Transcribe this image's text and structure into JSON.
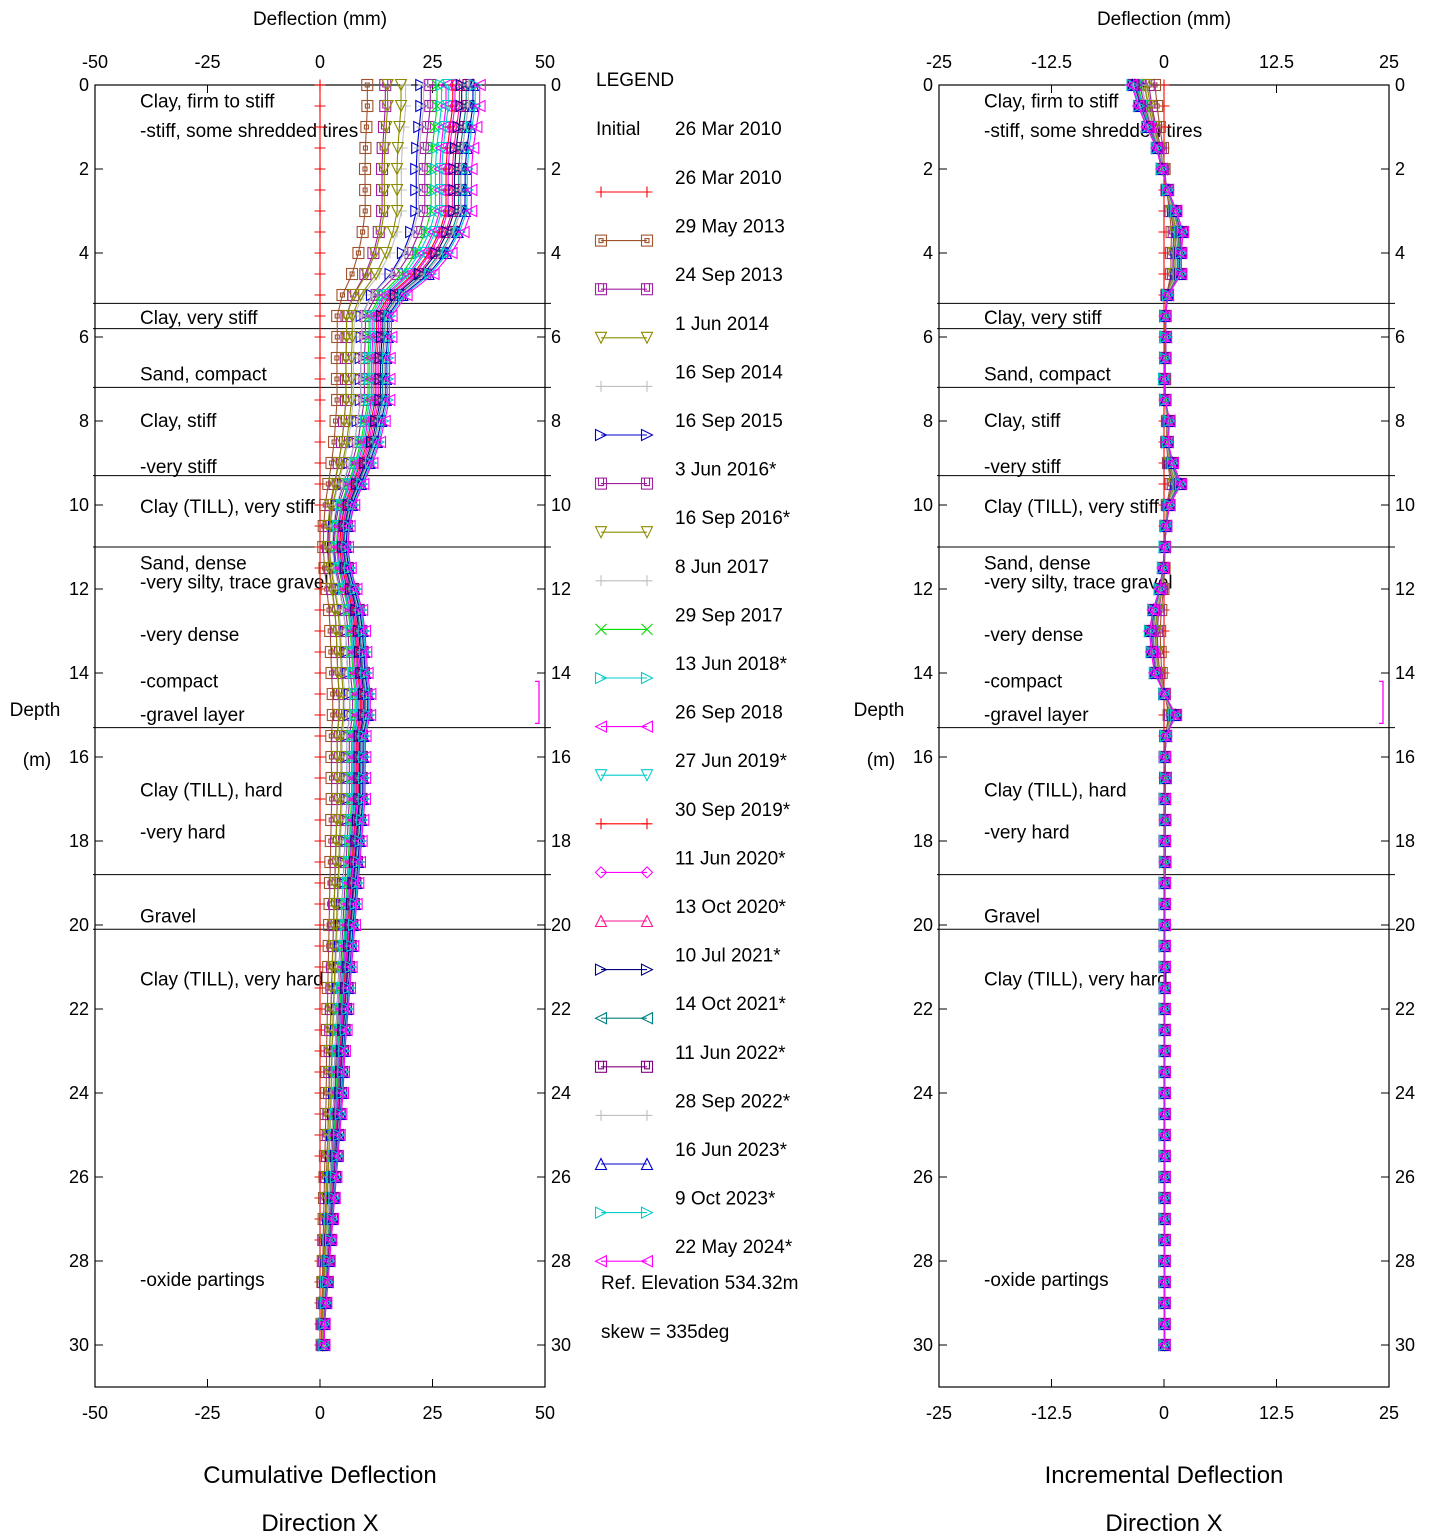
{
  "charts": [
    {
      "title": "Cumulative Deflection",
      "subtitle": "Direction  X",
      "top_axis_label": "Deflection (mm)",
      "ylabel_line1": "Depth",
      "ylabel_line2": "(m)",
      "xlim": [
        -50,
        50
      ],
      "x_ticks": [
        -50,
        -25,
        0,
        25,
        50
      ],
      "x_tick_labels": [
        "-50",
        "-25",
        "0",
        "25",
        "50"
      ]
    },
    {
      "title": "Incremental Deflection",
      "subtitle": "Direction  X",
      "top_axis_label": "Deflection (mm)",
      "ylabel_line1": "Depth",
      "ylabel_line2": "(m)",
      "xlim": [
        -25,
        25
      ],
      "x_ticks": [
        -25,
        -12.5,
        0,
        12.5,
        25
      ],
      "x_tick_labels": [
        "-25",
        "-12.5",
        "0",
        "12.5",
        "25"
      ]
    }
  ],
  "depth_ticks": [
    "0",
    "2",
    "4",
    "6",
    "8",
    "10",
    "12",
    "14",
    "16",
    "18",
    "20",
    "22",
    "24",
    "26",
    "28",
    "30"
  ],
  "ylim": [
    0,
    31
  ],
  "strata_boundaries": [
    5.2,
    5.8,
    7.2,
    9.3,
    11.0,
    15.3,
    18.8,
    20.1
  ],
  "strata_labels": [
    {
      "text": "Clay, firm to stiff",
      "depth": 0.35
    },
    {
      "text": "-stiff, some shredded tires",
      "depth": 1.05
    },
    {
      "text": "Clay, very stiff",
      "depth": 5.5
    },
    {
      "text": "Sand, compact",
      "depth": 6.85
    },
    {
      "text": "Clay, stiff",
      "depth": 7.95
    },
    {
      "text": "-very stiff",
      "depth": 9.05
    },
    {
      "text": "Clay (TILL), very stiff",
      "depth": 10.0
    },
    {
      "text": "Sand, dense",
      "depth": 11.35
    },
    {
      "text": "-very silty, trace gravel",
      "depth": 11.8
    },
    {
      "text": "-very dense",
      "depth": 13.05
    },
    {
      "text": "-compact",
      "depth": 14.15
    },
    {
      "text": "-gravel layer",
      "depth": 14.95
    },
    {
      "text": "Clay (TILL), hard",
      "depth": 16.75
    },
    {
      "text": "-very hard",
      "depth": 17.75
    },
    {
      "text": "Gravel",
      "depth": 19.75
    },
    {
      "text": "Clay (TILL), very hard",
      "depth": 21.25
    },
    {
      "text": "-oxide partings",
      "depth": 28.4
    }
  ],
  "bracket": {
    "depth_from": 14.2,
    "depth_to": 15.2,
    "color": "#ff00ff"
  },
  "legend": {
    "title": "LEGEND",
    "initial_label": "Initial",
    "initial_date": "26 Mar 2010",
    "ref_elevation": "Ref. Elevation 534.32m",
    "skew": "skew = 335deg"
  },
  "chart_data": {
    "type": "line",
    "charts": [
      "Cumulative Deflection",
      "Incremental Deflection"
    ],
    "x_unit": "mm",
    "y_unit": "m",
    "depth": [
      0,
      0.5,
      1,
      1.5,
      2,
      2.5,
      3,
      3.5,
      4,
      4.5,
      5,
      5.5,
      6,
      6.5,
      7,
      7.5,
      8,
      8.5,
      9,
      9.5,
      10,
      10.5,
      11,
      11.5,
      12,
      12.5,
      13,
      13.5,
      14,
      14.5,
      15,
      15.5,
      16,
      16.5,
      17,
      17.5,
      18,
      18.5,
      19,
      19.5,
      20,
      20.5,
      21,
      21.5,
      22,
      22.5,
      23,
      23.5,
      24,
      24.5,
      25,
      25.5,
      26,
      26.5,
      27,
      27.5,
      28,
      28.5,
      29,
      29.5,
      30
    ],
    "cumulative_profile": [
      1.0,
      1.0,
      0.98,
      0.96,
      0.95,
      0.95,
      0.95,
      0.9,
      0.82,
      0.7,
      0.52,
      0.42,
      0.42,
      0.41,
      0.41,
      0.41,
      0.38,
      0.35,
      0.3,
      0.24,
      0.18,
      0.15,
      0.14,
      0.16,
      0.2,
      0.24,
      0.26,
      0.27,
      0.28,
      0.3,
      0.3,
      0.27,
      0.27,
      0.27,
      0.27,
      0.26,
      0.25,
      0.24,
      0.23,
      0.22,
      0.21,
      0.2,
      0.19,
      0.18,
      0.17,
      0.16,
      0.15,
      0.145,
      0.14,
      0.13,
      0.12,
      0.11,
      0.1,
      0.09,
      0.08,
      0.07,
      0.06,
      0.05,
      0.04,
      0.03,
      0.03
    ],
    "incremental_profile": [
      -1.0,
      -0.8,
      -0.55,
      -0.25,
      -0.1,
      0.1,
      0.35,
      0.55,
      0.5,
      0.5,
      0.1,
      0.02,
      0.04,
      0.02,
      -0.02,
      0.02,
      0.15,
      0.1,
      0.25,
      0.5,
      0.15,
      0.05,
      0.0,
      -0.05,
      -0.15,
      -0.35,
      -0.45,
      -0.4,
      -0.3,
      0.0,
      0.35,
      0.05,
      0.02,
      0.04,
      0.02,
      0.03,
      0.02,
      0.03,
      0.02,
      0.02,
      0.02,
      0.02,
      0.02,
      0.02,
      0.02,
      0.02,
      0.02,
      0.02,
      0.02,
      0.02,
      0.02,
      0.02,
      0.02,
      0.02,
      0.02,
      0.02,
      0.02,
      0.02,
      0.02,
      0.02,
      0.02
    ],
    "series": [
      {
        "name": "26 Mar 2010",
        "color": "#ff0000",
        "marker": "plus",
        "cum_scale": 0,
        "cum_offset": 0.5,
        "inc_scale": 0,
        "inc_offset": 0
      },
      {
        "name": "29 May 2013",
        "color": "#a0522d",
        "marker": "square-dot",
        "cum_scale": 12,
        "cum_offset": -1.5,
        "inc_scale": 1.2,
        "inc_offset": 0.2
      },
      {
        "name": "24 Sep 2013",
        "color": "#a020a0",
        "marker": "square-u",
        "cum_scale": 15,
        "cum_offset": -0.5,
        "inc_scale": 1.8,
        "inc_offset": 0.1
      },
      {
        "name": "1 Jun 2014",
        "color": "#8b8b00",
        "marker": "tri-down",
        "cum_scale": 16,
        "cum_offset": -1.0,
        "inc_scale": 2.0,
        "inc_offset": 0.1
      },
      {
        "name": "16 Sep 2014",
        "color": "#c0c0c0",
        "marker": "plus",
        "cum_scale": 20,
        "cum_offset": -1.0,
        "inc_scale": 2.2,
        "inc_offset": 0.1
      },
      {
        "name": "16 Sep 2015",
        "color": "#0000cd",
        "marker": "tri-right",
        "cum_scale": 23,
        "cum_offset": -0.5,
        "inc_scale": 2.6,
        "inc_offset": 0.1
      },
      {
        "name": "3 Jun 2016*",
        "color": "#a020a0",
        "marker": "square-u",
        "cum_scale": 25,
        "cum_offset": -0.5,
        "inc_scale": 2.8,
        "inc_offset": 0.1
      },
      {
        "name": "16 Sep 2016*",
        "color": "#8b8b00",
        "marker": "tri-down",
        "cum_scale": 19,
        "cum_offset": -1.0,
        "inc_scale": 2.3,
        "inc_offset": 0.1
      },
      {
        "name": "8 Jun 2017",
        "color": "#c0c0c0",
        "marker": "plus",
        "cum_scale": 24,
        "cum_offset": -1.0,
        "inc_scale": 2.6,
        "inc_offset": 0.1
      },
      {
        "name": "29 Sep 2017",
        "color": "#00dd00",
        "marker": "x",
        "cum_scale": 26,
        "cum_offset": 0.0,
        "inc_scale": 3.0,
        "inc_offset": 0.1
      },
      {
        "name": "13 Jun 2018*",
        "color": "#00cccc",
        "marker": "tri-right",
        "cum_scale": 27,
        "cum_offset": 0.0,
        "inc_scale": 3.1,
        "inc_offset": 0.1
      },
      {
        "name": "26 Sep 2018",
        "color": "#ff00ff",
        "marker": "tri-left",
        "cum_scale": 28,
        "cum_offset": 0.0,
        "inc_scale": 3.2,
        "inc_offset": 0.1
      },
      {
        "name": "27 Jun 2019*",
        "color": "#00cccc",
        "marker": "tri-down",
        "cum_scale": 28,
        "cum_offset": 0.5,
        "inc_scale": 3.2,
        "inc_offset": 0.1
      },
      {
        "name": "30 Sep 2019*",
        "color": "#ff0000",
        "marker": "plus",
        "cum_scale": 29,
        "cum_offset": 0.5,
        "inc_scale": 3.3,
        "inc_offset": 0.1
      },
      {
        "name": "11 Jun 2020*",
        "color": "#ff00ff",
        "marker": "diamond",
        "cum_scale": 29,
        "cum_offset": 1.0,
        "inc_scale": 3.3,
        "inc_offset": 0.1
      },
      {
        "name": "13 Oct 2020*",
        "color": "#ff1493",
        "marker": "tri-up",
        "cum_scale": 30,
        "cum_offset": 1.0,
        "inc_scale": 3.4,
        "inc_offset": 0.1
      },
      {
        "name": "10 Jul 2021*",
        "color": "#000080",
        "marker": "tri-right",
        "cum_scale": 30,
        "cum_offset": 1.5,
        "inc_scale": 3.4,
        "inc_offset": 0.1
      },
      {
        "name": "14 Oct 2021*",
        "color": "#008080",
        "marker": "tri-left",
        "cum_scale": 31,
        "cum_offset": 1.5,
        "inc_scale": 3.5,
        "inc_offset": 0.1
      },
      {
        "name": "11 Jun 2022*",
        "color": "#800080",
        "marker": "square-u",
        "cum_scale": 31,
        "cum_offset": 2.0,
        "inc_scale": 3.5,
        "inc_offset": 0.1
      },
      {
        "name": "28 Sep 2022*",
        "color": "#c0c0c0",
        "marker": "plus",
        "cum_scale": 31,
        "cum_offset": 2.0,
        "inc_scale": 3.5,
        "inc_offset": 0.1
      },
      {
        "name": "16 Jun 2023*",
        "color": "#0000cd",
        "marker": "tri-up",
        "cum_scale": 32,
        "cum_offset": 2.0,
        "inc_scale": 3.6,
        "inc_offset": 0.1
      },
      {
        "name": "9 Oct 2023*",
        "color": "#00cccc",
        "marker": "tri-right",
        "cum_scale": 32,
        "cum_offset": 2.5,
        "inc_scale": 3.6,
        "inc_offset": 0.1
      },
      {
        "name": "22 May 2024*",
        "color": "#ff00ff",
        "marker": "tri-left",
        "cum_scale": 33,
        "cum_offset": 2.5,
        "inc_scale": 3.7,
        "inc_offset": 0.1
      }
    ]
  }
}
